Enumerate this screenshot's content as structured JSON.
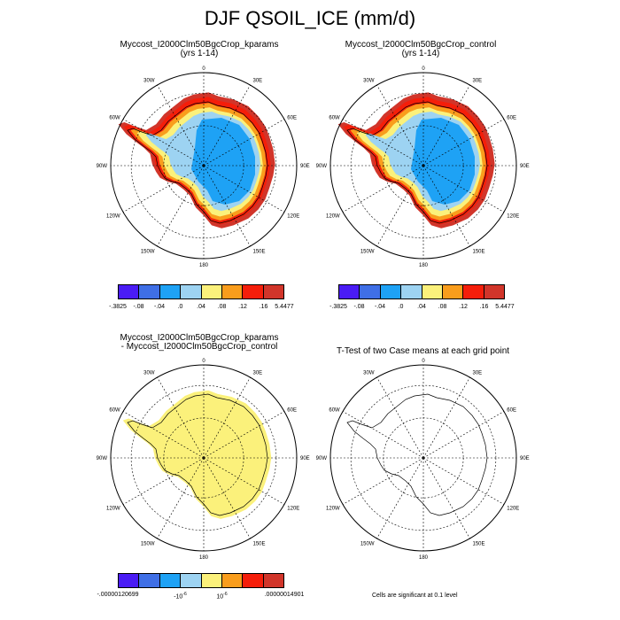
{
  "title": "DJF QSOIL_ICE (mm/d)",
  "panels": [
    {
      "title_line1": "Myccost_I2000Clm50BgcCrop_kparams",
      "title_line2": "(yrs 1-14)"
    },
    {
      "title_line1": "Myccost_I2000Clm50BgcCrop_control",
      "title_line2": "(yrs 1-14)"
    },
    {
      "title_line1": "Myccost_I2000Clm50BgcCrop_kparams",
      "title_line2": "- Myccost_I2000Clm50BgcCrop_control"
    },
    {
      "title_line1": "T-Test of two Case means at each grid point",
      "title_line2": ""
    }
  ],
  "map_labels": {
    "top": "0",
    "bottom": "180",
    "left": "90W",
    "right": "90E",
    "tl1": "30W",
    "tl2": "60W",
    "tr1": "30E",
    "tr2": "60E",
    "bl1": "120W",
    "bl2": "150W",
    "br1": "120E",
    "br2": "150E"
  },
  "colorbar_colors": [
    "#4a1cf5",
    "#3f6fe6",
    "#1ea2f5",
    "#9dd3f2",
    "#fbf17b",
    "#f99d1c",
    "#f51e0a",
    "#d1352a"
  ],
  "colorbar_top_labels": [
    "-.3825",
    "-.08",
    "-.04",
    ".0",
    ".04",
    ".08",
    ".12",
    ".16",
    "5.4477"
  ],
  "colorbar_diff_labels": [
    "-.00000120699",
    "-10",
    "-6",
    "10",
    "-6",
    ".00000014901"
  ],
  "footnote": "Cells are significant at 0.1 level",
  "colors": {
    "ice_blue": "#1ea2f5",
    "light_blue": "#9dd3f2",
    "yellow": "#fbf17b",
    "orange": "#f99d1c",
    "red": "#f51e0a",
    "dark_red": "#d1352a",
    "diff_yellow": "#fbf17b"
  }
}
